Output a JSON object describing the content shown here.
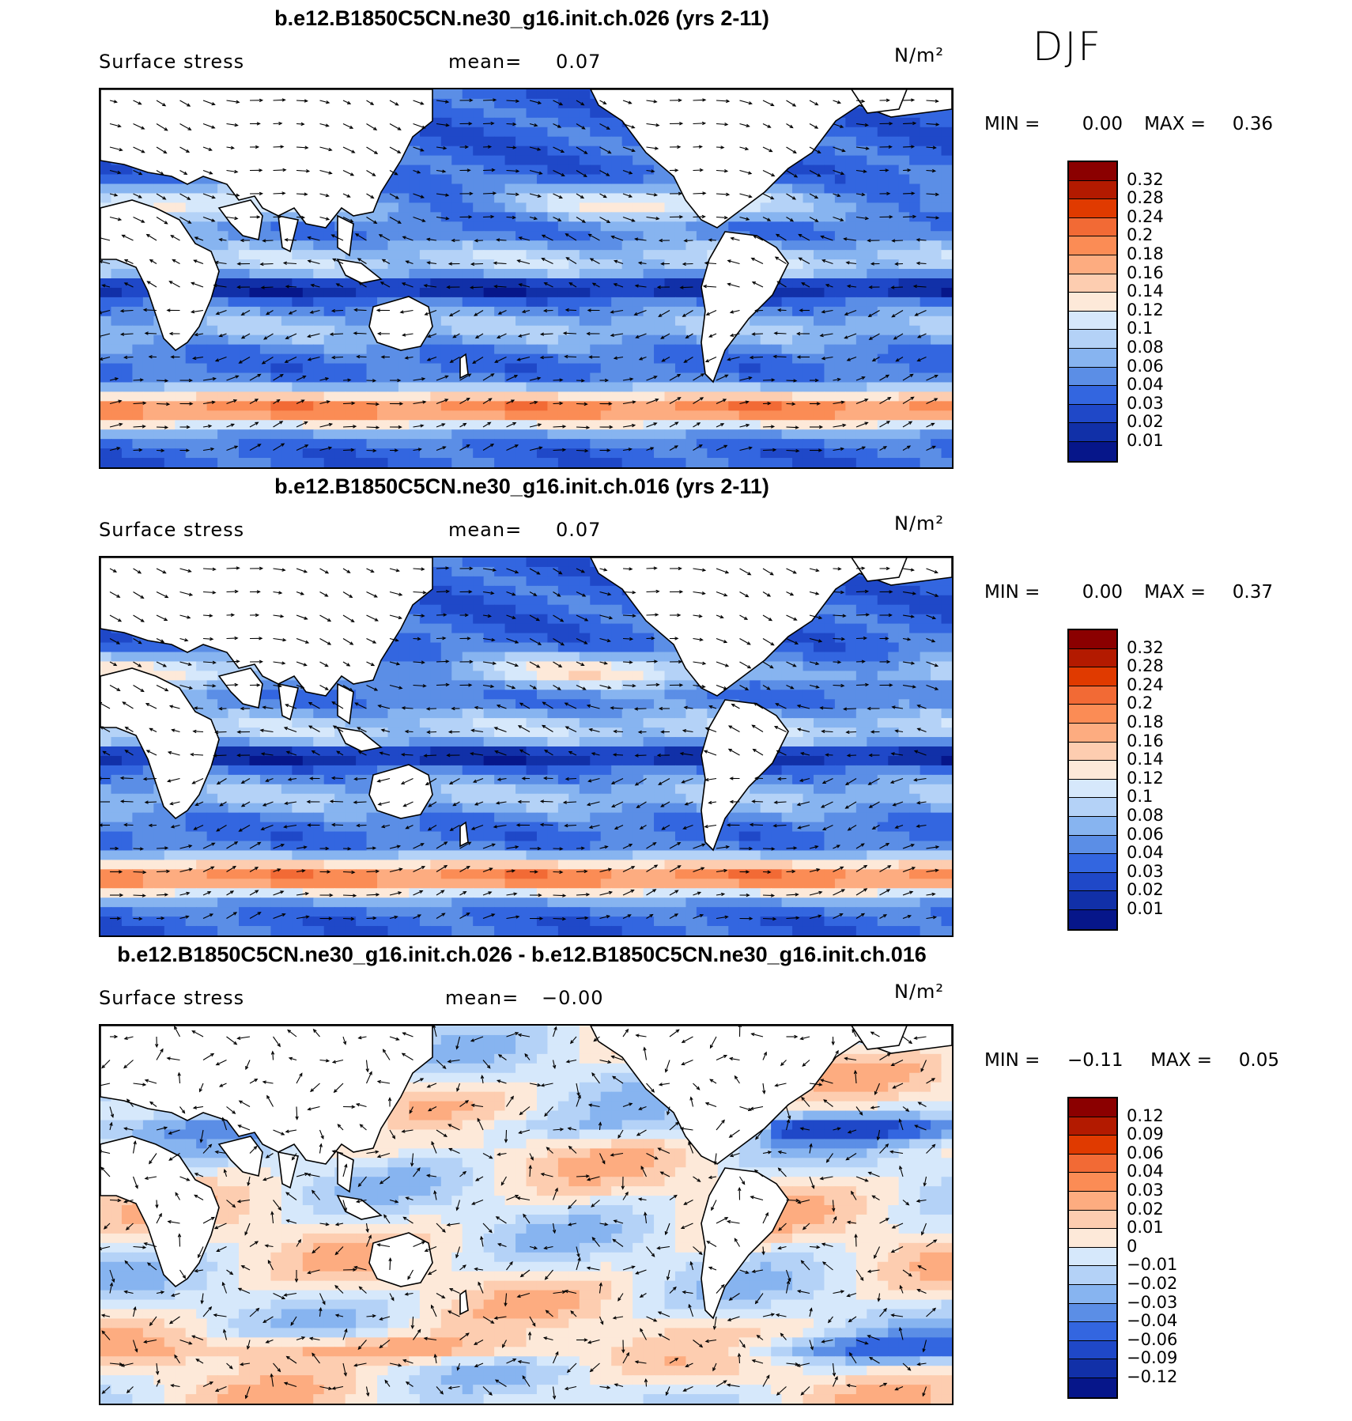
{
  "season": "DJF",
  "panels": [
    {
      "title": "b.e12.B1850C5CN.ne30_g16.init.ch.026 (yrs 2-11)",
      "variable": "Surface stress",
      "mean_label": "mean=",
      "mean_value": "0.07",
      "units": "N/m²",
      "min_label": "MIN =",
      "min_value": "0.00",
      "max_label": "MAX =",
      "max_value": "0.36",
      "colorbar_ticks": [
        "0.32",
        "0.28",
        "0.24",
        "0.2",
        "0.18",
        "0.16",
        "0.14",
        "0.12",
        "0.1",
        "0.08",
        "0.06",
        "0.04",
        "0.03",
        "0.02",
        "0.01"
      ],
      "colorbar_colors": [
        "#8b0000",
        "#b31a00",
        "#e03a00",
        "#f26a35",
        "#fb8c55",
        "#fdac80",
        "#fdcdb0",
        "#fde9d9",
        "#d6e8fb",
        "#b4d2f7",
        "#87b4f0",
        "#5b8ee6",
        "#3366e0",
        "#1f48c8",
        "#1130a8",
        "#06168a"
      ],
      "field_type": "absolute"
    },
    {
      "title": "b.e12.B1850C5CN.ne30_g16.init.ch.016 (yrs 2-11)",
      "variable": "Surface stress",
      "mean_label": "mean=",
      "mean_value": "0.07",
      "units": "N/m²",
      "min_label": "MIN =",
      "min_value": "0.00",
      "max_label": "MAX =",
      "max_value": "0.37",
      "colorbar_ticks": [
        "0.32",
        "0.28",
        "0.24",
        "0.2",
        "0.18",
        "0.16",
        "0.14",
        "0.12",
        "0.1",
        "0.08",
        "0.06",
        "0.04",
        "0.03",
        "0.02",
        "0.01"
      ],
      "colorbar_colors": [
        "#8b0000",
        "#b31a00",
        "#e03a00",
        "#f26a35",
        "#fb8c55",
        "#fdac80",
        "#fdcdb0",
        "#fde9d9",
        "#d6e8fb",
        "#b4d2f7",
        "#87b4f0",
        "#5b8ee6",
        "#3366e0",
        "#1f48c8",
        "#1130a8",
        "#06168a"
      ],
      "field_type": "absolute"
    },
    {
      "title": "b.e12.B1850C5CN.ne30_g16.init.ch.026 - b.e12.B1850C5CN.ne30_g16.init.ch.016",
      "variable": "Surface stress",
      "mean_label": "mean=",
      "mean_value": "−0.00",
      "units": "N/m²",
      "min_label": "MIN =",
      "min_value": "−0.11",
      "max_label": "MAX =",
      "max_value": "0.05",
      "colorbar_ticks": [
        "0.12",
        "0.09",
        "0.06",
        "0.04",
        "0.03",
        "0.02",
        "0.01",
        "0",
        "−0.01",
        "−0.02",
        "−0.03",
        "−0.04",
        "−0.06",
        "−0.09",
        "−0.12"
      ],
      "colorbar_colors": [
        "#8b0000",
        "#b31a00",
        "#e03a00",
        "#f26a35",
        "#fb8c55",
        "#fdac80",
        "#fdcdb0",
        "#fde9d9",
        "#d6e8fb",
        "#b4d2f7",
        "#87b4f0",
        "#5b8ee6",
        "#3366e0",
        "#1f48c8",
        "#1130a8",
        "#06168a"
      ],
      "field_type": "difference"
    }
  ]
}
